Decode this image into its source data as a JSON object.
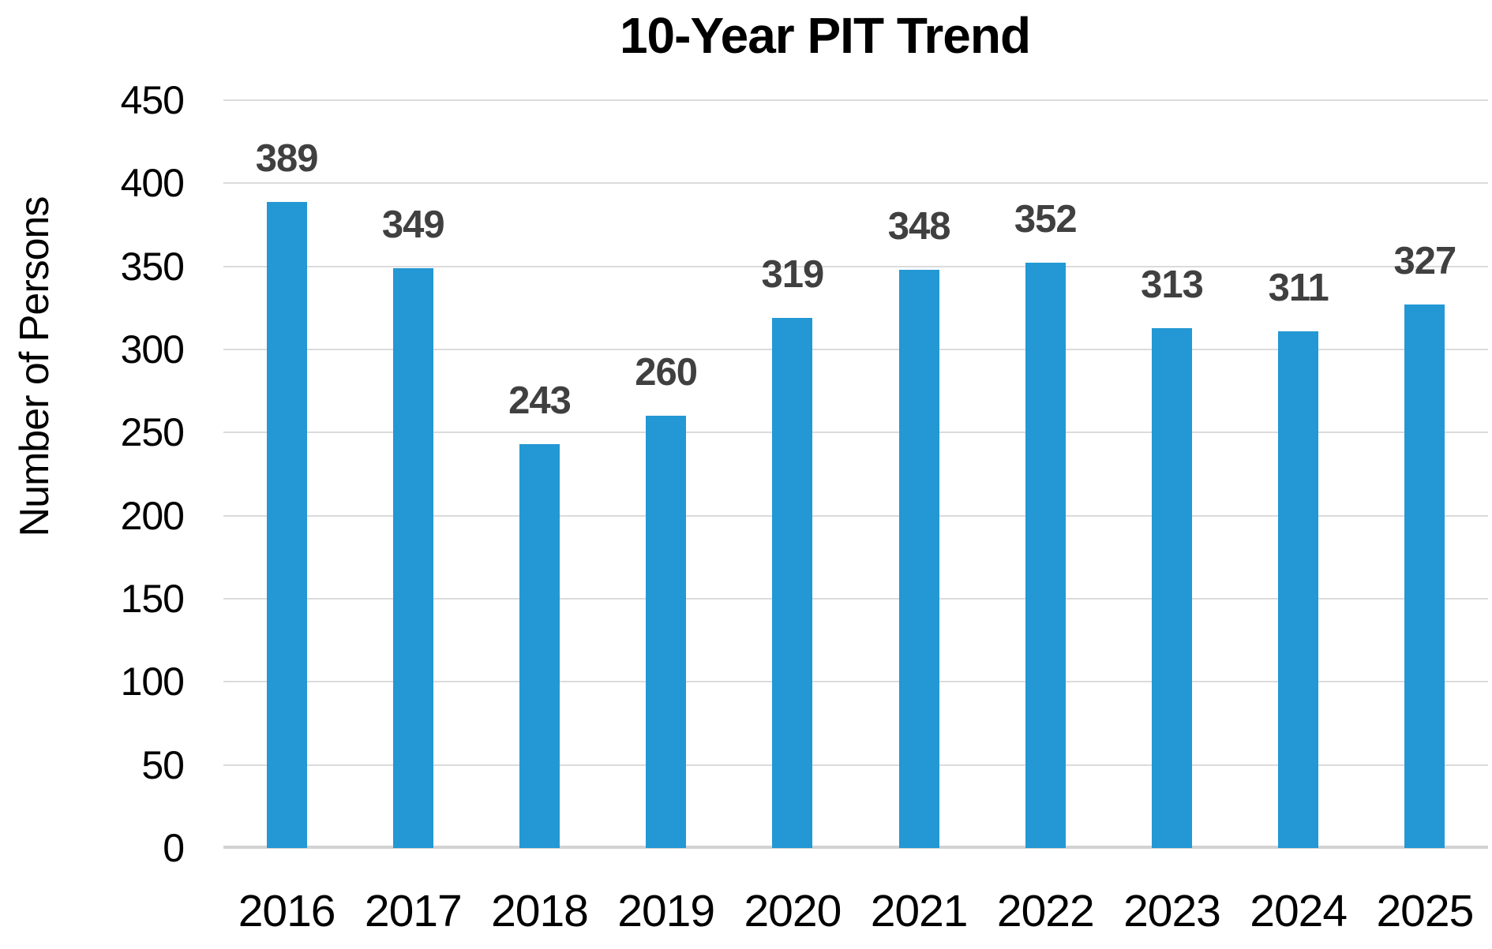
{
  "chart": {
    "title": "10-Year PIT Trend",
    "y_axis_title": "Number of Persons"
  },
  "chart_data": {
    "type": "bar",
    "title": "10-Year PIT Trend",
    "categories": [
      "2016",
      "2017",
      "2018",
      "2019",
      "2020",
      "2021",
      "2022",
      "2023",
      "2024",
      "2025"
    ],
    "values": [
      389,
      349,
      243,
      260,
      319,
      348,
      352,
      313,
      311,
      327
    ],
    "xlabel": "",
    "ylabel": "Number of Persons",
    "ylim": [
      0,
      450
    ],
    "ytick_step": 50,
    "yticks": [
      0,
      50,
      100,
      150,
      200,
      250,
      300,
      350,
      400,
      450
    ],
    "grid": "horizontal",
    "legend_position": "none",
    "data_labels": "above-bars",
    "colors": {
      "bar": "#2398d4",
      "data_label": "#404040",
      "axis_label": "#000000",
      "gridline": "#dbdbdb"
    }
  }
}
